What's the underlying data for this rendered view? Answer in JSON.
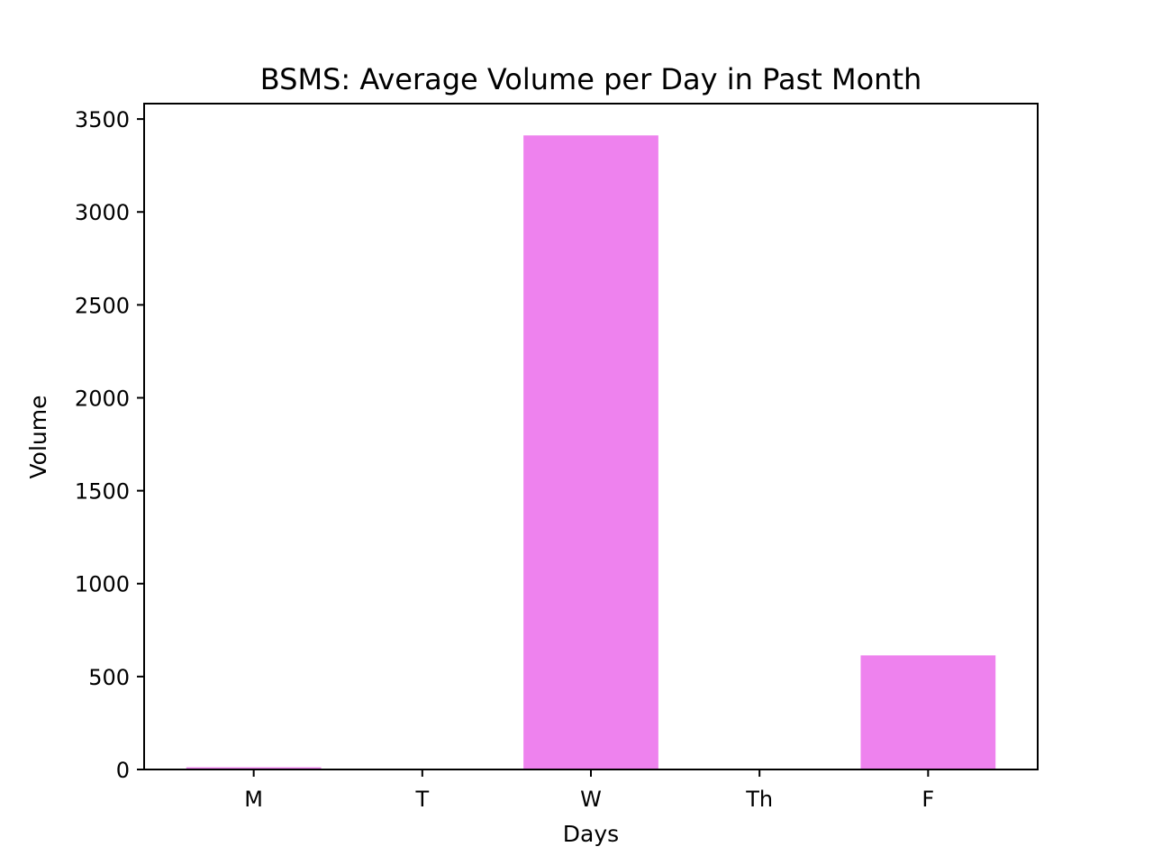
{
  "chart_data": {
    "type": "bar",
    "title": "BSMS: Average Volume per Day in Past Month",
    "xlabel": "Days",
    "ylabel": "Volume",
    "categories": [
      "M",
      "T",
      "W",
      "Th",
      "F"
    ],
    "values": [
      12,
      0,
      3412,
      0,
      614
    ],
    "ylim": [
      0,
      3583
    ],
    "yticks": [
      0,
      500,
      1000,
      1500,
      2000,
      2500,
      3000,
      3500
    ],
    "bar_color": "#ee82ee",
    "grid": false,
    "legend": "none"
  }
}
